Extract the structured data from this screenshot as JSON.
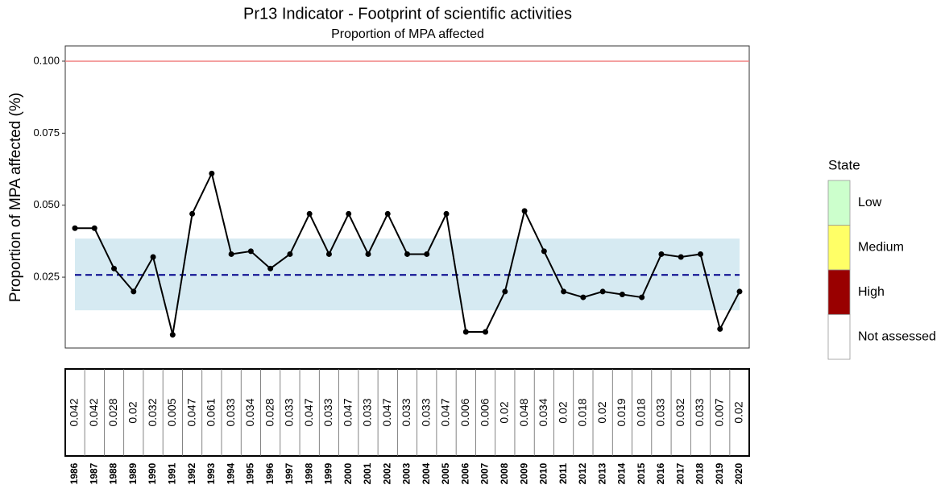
{
  "chart_data": {
    "type": "line",
    "title": "Pr13 Indicator - Footprint of scientific activities",
    "subtitle": "Proportion of MPA affected",
    "y_label": "Proportion of MPA affected (%)",
    "categories": [
      "1986",
      "1987",
      "1988",
      "1989",
      "1990",
      "1991",
      "1992",
      "1993",
      "1994",
      "1995",
      "1996",
      "1997",
      "1998",
      "1999",
      "2000",
      "2001",
      "2002",
      "2003",
      "2004",
      "2005",
      "2006",
      "2007",
      "2008",
      "2009",
      "2010",
      "2011",
      "2012",
      "2013",
      "2014",
      "2015",
      "2016",
      "2017",
      "2018",
      "2019",
      "2020"
    ],
    "values": [
      0.042,
      0.042,
      0.028,
      0.02,
      0.032,
      0.005,
      0.047,
      0.061,
      0.033,
      0.034,
      0.028,
      0.033,
      0.047,
      0.033,
      0.047,
      0.033,
      0.047,
      0.033,
      0.033,
      0.047,
      0.006,
      0.006,
      0.02,
      0.048,
      0.034,
      0.02,
      0.018,
      0.02,
      0.019,
      0.018,
      0.033,
      0.032,
      0.033,
      0.007,
      0.02
    ],
    "color": "#000000",
    "threshold": 0.1,
    "threshold_color": "#f08080",
    "mean": 0.0258,
    "mean_color": "#00008b",
    "band": [
      0.0135,
      0.0384
    ],
    "band_color": "#d6eaf2",
    "ylim": [
      0.0004,
      0.1053
    ],
    "yticks": [
      {
        "value": 0.025,
        "label": "0.025"
      },
      {
        "value": 0.05,
        "label": "0.050"
      },
      {
        "value": 0.075,
        "label": "0.075"
      },
      {
        "value": 0.1,
        "label": "0.100"
      }
    ],
    "legend": {
      "title": "State",
      "items": [
        {
          "label": "Low",
          "color": "#ccffcc"
        },
        {
          "label": "Medium",
          "color": "#ffff66"
        },
        {
          "label": "High",
          "color": "#990000"
        },
        {
          "label": "Not assessed",
          "color": "#ffffff"
        }
      ]
    }
  }
}
